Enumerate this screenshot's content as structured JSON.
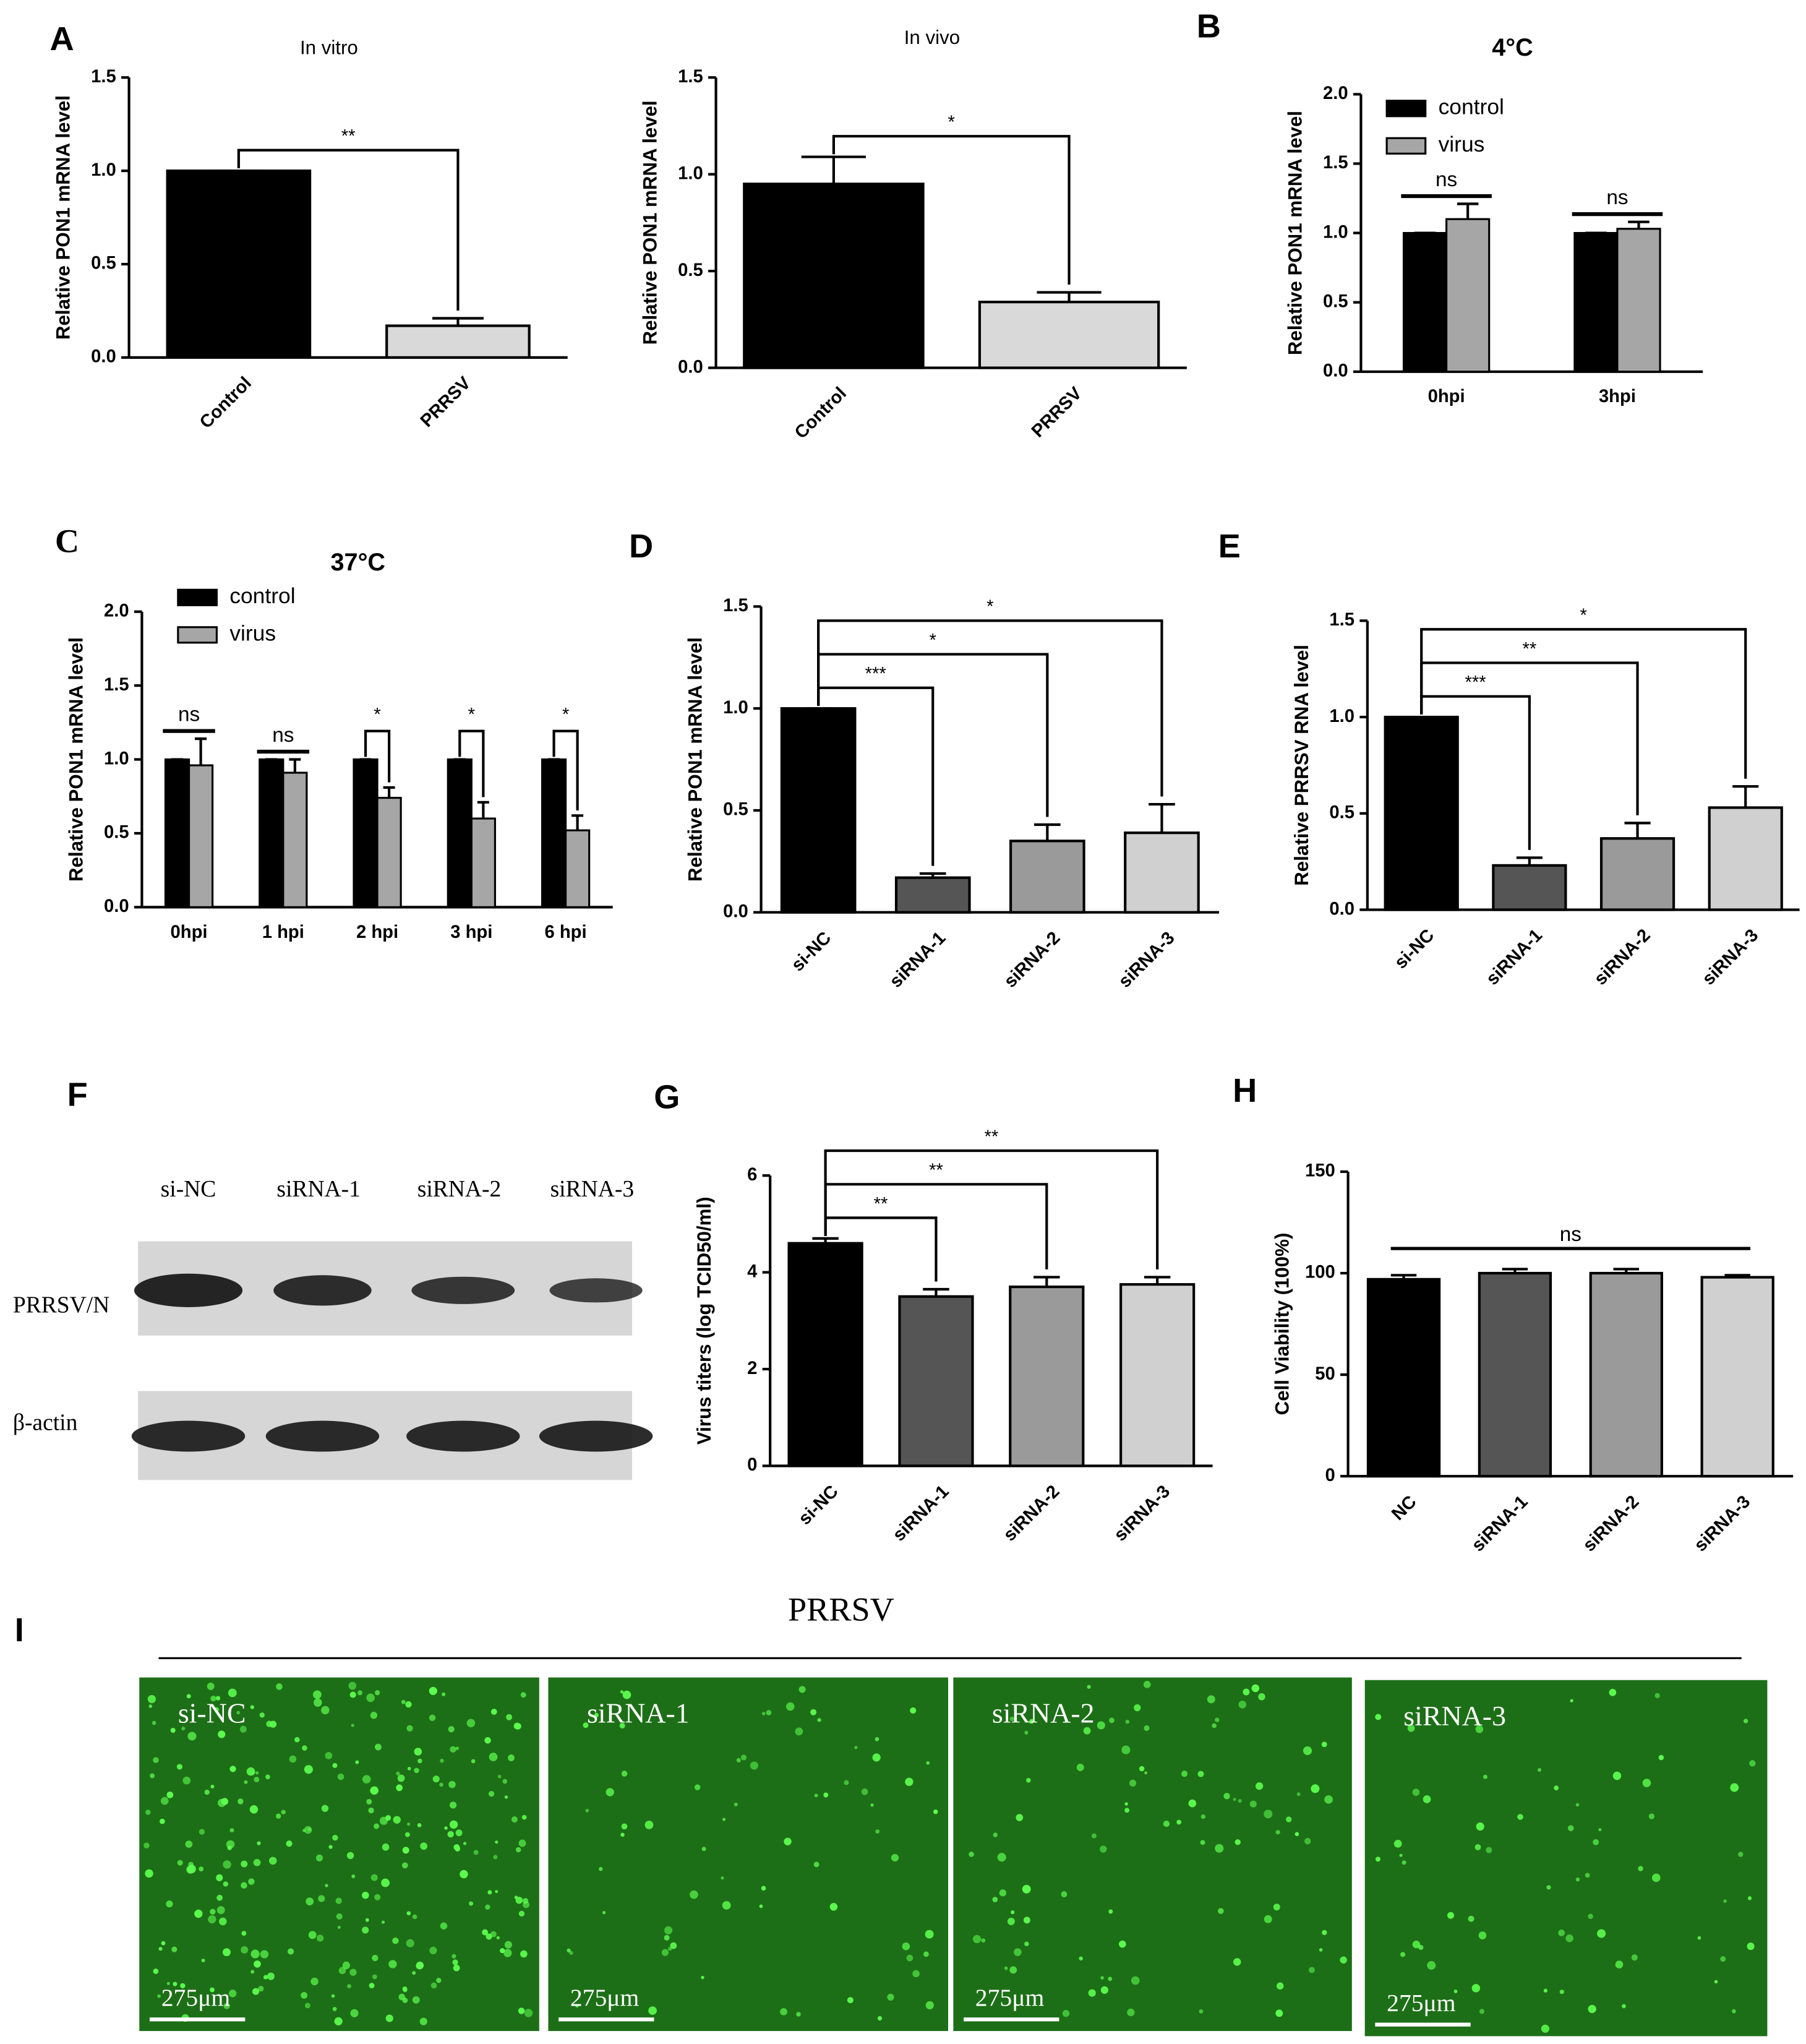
{
  "chart_data": [
    {
      "type": "bar",
      "title": "In vitro",
      "y_label": "Relative PON1 mRNA level",
      "categories": [
        "Control",
        "PRRSV"
      ],
      "values": [
        1.0,
        0.17
      ],
      "errors": [
        0,
        0.04
      ],
      "colors": [
        "#000000",
        "#d9d9d9"
      ],
      "ylim": [
        0,
        1.5
      ],
      "yticks": [
        {
          "value": 0,
          "label": "0.0"
        },
        0.5,
        {
          "value": 1,
          "label": "1.0"
        },
        1.5
      ],
      "annotations": [
        {
          "text": "**",
          "between": [
            "Control",
            "PRRSV"
          ]
        }
      ]
    },
    {
      "type": "bar",
      "title": "In  vivo",
      "y_label": "Relative PON1 mRNA level",
      "categories": [
        "Control",
        "PRRSV"
      ],
      "values": [
        0.95,
        0.34
      ],
      "errors": [
        0.14,
        0.05
      ],
      "colors": [
        "#000000",
        "#d9d9d9"
      ],
      "ylim": [
        0,
        1.5
      ],
      "yticks": [
        {
          "value": 0,
          "label": "0.0"
        },
        0.5,
        {
          "value": 1,
          "label": "1.0"
        },
        1.5
      ],
      "annotations": [
        {
          "text": "*",
          "between": [
            "Control",
            "PRRSV"
          ]
        }
      ]
    },
    {
      "type": "grouped_bar",
      "title": "4°C",
      "y_label": "Relative PON1 mRNA level",
      "categories": [
        "0hpi",
        "3hpi"
      ],
      "series": [
        {
          "name": "control",
          "color": "#000000",
          "values": [
            1.0,
            1.0
          ],
          "errors": [
            0,
            0
          ]
        },
        {
          "name": "virus",
          "color": "#a6a6a6",
          "values": [
            1.1,
            1.03
          ],
          "errors": [
            0.11,
            0.05
          ]
        }
      ],
      "ylim": [
        0,
        2
      ],
      "yticks": [
        {
          "value": 0,
          "label": "0.0"
        },
        0.5,
        {
          "value": 1,
          "label": "1.0"
        },
        1.5,
        {
          "value": 2,
          "label": "2.0"
        }
      ],
      "legend": "upper left",
      "annotations": [
        {
          "text": "ns",
          "bracket": false
        },
        {
          "text": "ns",
          "bracket": false
        }
      ]
    },
    {
      "type": "grouped_bar",
      "title": "37°C",
      "y_label": "Relative PON1 mRNA level",
      "categories": [
        "0hpi",
        "1 hpi",
        "2 hpi",
        "3 hpi",
        "6 hpi"
      ],
      "series": [
        {
          "name": "control",
          "color": "#000000",
          "values": [
            1.0,
            1.0,
            1.0,
            1.0,
            1.0
          ],
          "errors": [
            0,
            0,
            0,
            0,
            0
          ]
        },
        {
          "name": "virus",
          "color": "#a6a6a6",
          "values": [
            0.96,
            0.91,
            0.74,
            0.6,
            0.52
          ],
          "errors": [
            0.18,
            0.09,
            0.07,
            0.11,
            0.1
          ]
        }
      ],
      "ylim": [
        0,
        2
      ],
      "yticks": [
        {
          "value": 0,
          "label": "0.0"
        },
        0.5,
        {
          "value": 1,
          "label": "1.0"
        },
        1.5,
        {
          "value": 2,
          "label": "2.0"
        }
      ],
      "legend": "upper left",
      "annotations": [
        {
          "text": "ns",
          "bracket": false
        },
        {
          "text": "ns",
          "bracket": false
        },
        {
          "text": "*",
          "bracket": true
        },
        {
          "text": "*",
          "bracket": true
        },
        {
          "text": "*",
          "bracket": true
        }
      ]
    },
    {
      "type": "bar",
      "y_label": "Relative PON1 mRNA level",
      "categories": [
        "si-NC",
        "siRNA-1",
        "siRNA-2",
        "siRNA-3"
      ],
      "values": [
        1.0,
        0.17,
        0.35,
        0.39
      ],
      "errors": [
        0,
        0.02,
        0.08,
        0.14
      ],
      "colors": [
        "#000000",
        "#555555",
        "#9a9a9a",
        "#d0d0d0"
      ],
      "ylim": [
        0,
        1.5
      ],
      "yticks": [
        {
          "value": 0,
          "label": "0.0"
        },
        0.5,
        {
          "value": 1,
          "label": "1.0"
        },
        1.5
      ],
      "annotations": [
        {
          "text": "***",
          "between": [
            "si-NC",
            "siRNA-1"
          ]
        },
        {
          "text": "*",
          "between": [
            "si-NC",
            "siRNA-2"
          ]
        },
        {
          "text": "*",
          "between": [
            "si-NC",
            "siRNA-3"
          ]
        }
      ]
    },
    {
      "type": "bar",
      "y_label": "Relative PRRSV RNA level",
      "categories": [
        "si-NC",
        "siRNA-1",
        "siRNA-2",
        "siRNA-3"
      ],
      "values": [
        1.0,
        0.23,
        0.37,
        0.53
      ],
      "errors": [
        0,
        0.04,
        0.08,
        0.11
      ],
      "colors": [
        "#000000",
        "#555555",
        "#9a9a9a",
        "#d0d0d0"
      ],
      "ylim": [
        0,
        1.5
      ],
      "yticks": [
        {
          "value": 0,
          "label": "0.0"
        },
        0.5,
        {
          "value": 1,
          "label": "1.0"
        },
        1.5
      ],
      "annotations": [
        {
          "text": "***",
          "between": [
            "si-NC",
            "siRNA-1"
          ]
        },
        {
          "text": "**",
          "between": [
            "si-NC",
            "siRNA-2"
          ]
        },
        {
          "text": "*",
          "between": [
            "si-NC",
            "siRNA-3"
          ]
        }
      ]
    },
    {
      "type": "bar",
      "y_label": "Virus titers (log TCID50/ml)",
      "categories": [
        "si-NC",
        "siRNA-1",
        "siRNA-2",
        "siRNA-3"
      ],
      "values": [
        4.6,
        3.5,
        3.7,
        3.75
      ],
      "errors": [
        0.1,
        0.15,
        0.2,
        0.15
      ],
      "colors": [
        "#000000",
        "#555555",
        "#9a9a9a",
        "#d0d0d0"
      ],
      "ylim": [
        0,
        6
      ],
      "yticks": [
        0,
        2,
        4,
        6
      ],
      "annotations": [
        {
          "text": "**",
          "between": [
            "si-NC",
            "siRNA-1"
          ]
        },
        {
          "text": "**",
          "between": [
            "si-NC",
            "siRNA-2"
          ]
        },
        {
          "text": "**",
          "between": [
            "si-NC",
            "siRNA-3"
          ]
        }
      ]
    },
    {
      "type": "bar",
      "y_label": "Cell Viability (100%)",
      "categories": [
        "NC",
        "siRNA-1",
        "siRNA-2",
        "siRNA-3"
      ],
      "values": [
        97,
        100,
        100,
        98
      ],
      "errors": [
        2,
        2,
        2,
        1
      ],
      "colors": [
        "#000000",
        "#555555",
        "#9a9a9a",
        "#d0d0d0"
      ],
      "ylim": [
        0,
        150
      ],
      "yticks": [
        0,
        50,
        100,
        150
      ],
      "annotations": [
        {
          "text": "ns",
          "between": [
            "NC",
            "siRNA-3"
          ],
          "bracket": false
        }
      ]
    }
  ],
  "figure": {
    "panel_letters": [
      "A",
      "B",
      "C",
      "D",
      "E",
      "F",
      "G",
      "H",
      "I"
    ],
    "blot": {
      "lanes": [
        "si-NC",
        "siRNA-1",
        "siRNA-2",
        "siRNA-3"
      ],
      "rows": [
        "PRRSV/N",
        "β-actin"
      ]
    },
    "microscopy": {
      "title": "PRRSV",
      "images": [
        "si-NC",
        "siRNA-1",
        "siRNA-2",
        "siRNA-3"
      ],
      "scale_bar": "275μm"
    }
  }
}
